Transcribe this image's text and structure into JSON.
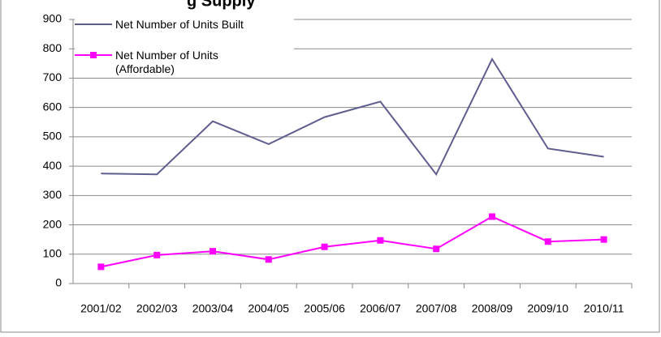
{
  "chart_data": {
    "type": "line",
    "title": "g Supply",
    "categories": [
      "2001/02",
      "2002/03",
      "2003/04",
      "2004/05",
      "2005/06",
      "2006/07",
      "2007/08",
      "2008/09",
      "2009/10",
      "2010/11"
    ],
    "series": [
      {
        "name": "Net Number of Units Built",
        "color": "#5f5d8e",
        "marker": "none",
        "values": [
          375,
          372,
          553,
          475,
          567,
          620,
          372,
          765,
          460,
          432
        ]
      },
      {
        "name": "Net Number of Units (Affordable)",
        "color": "#ff00ff",
        "marker": "square",
        "values": [
          57,
          97,
          110,
          82,
          125,
          147,
          118,
          228,
          143,
          150
        ]
      }
    ],
    "ylim": [
      0,
      900
    ],
    "yticks": [
      0,
      100,
      200,
      300,
      400,
      500,
      600,
      700,
      800,
      900
    ],
    "grid": true
  }
}
